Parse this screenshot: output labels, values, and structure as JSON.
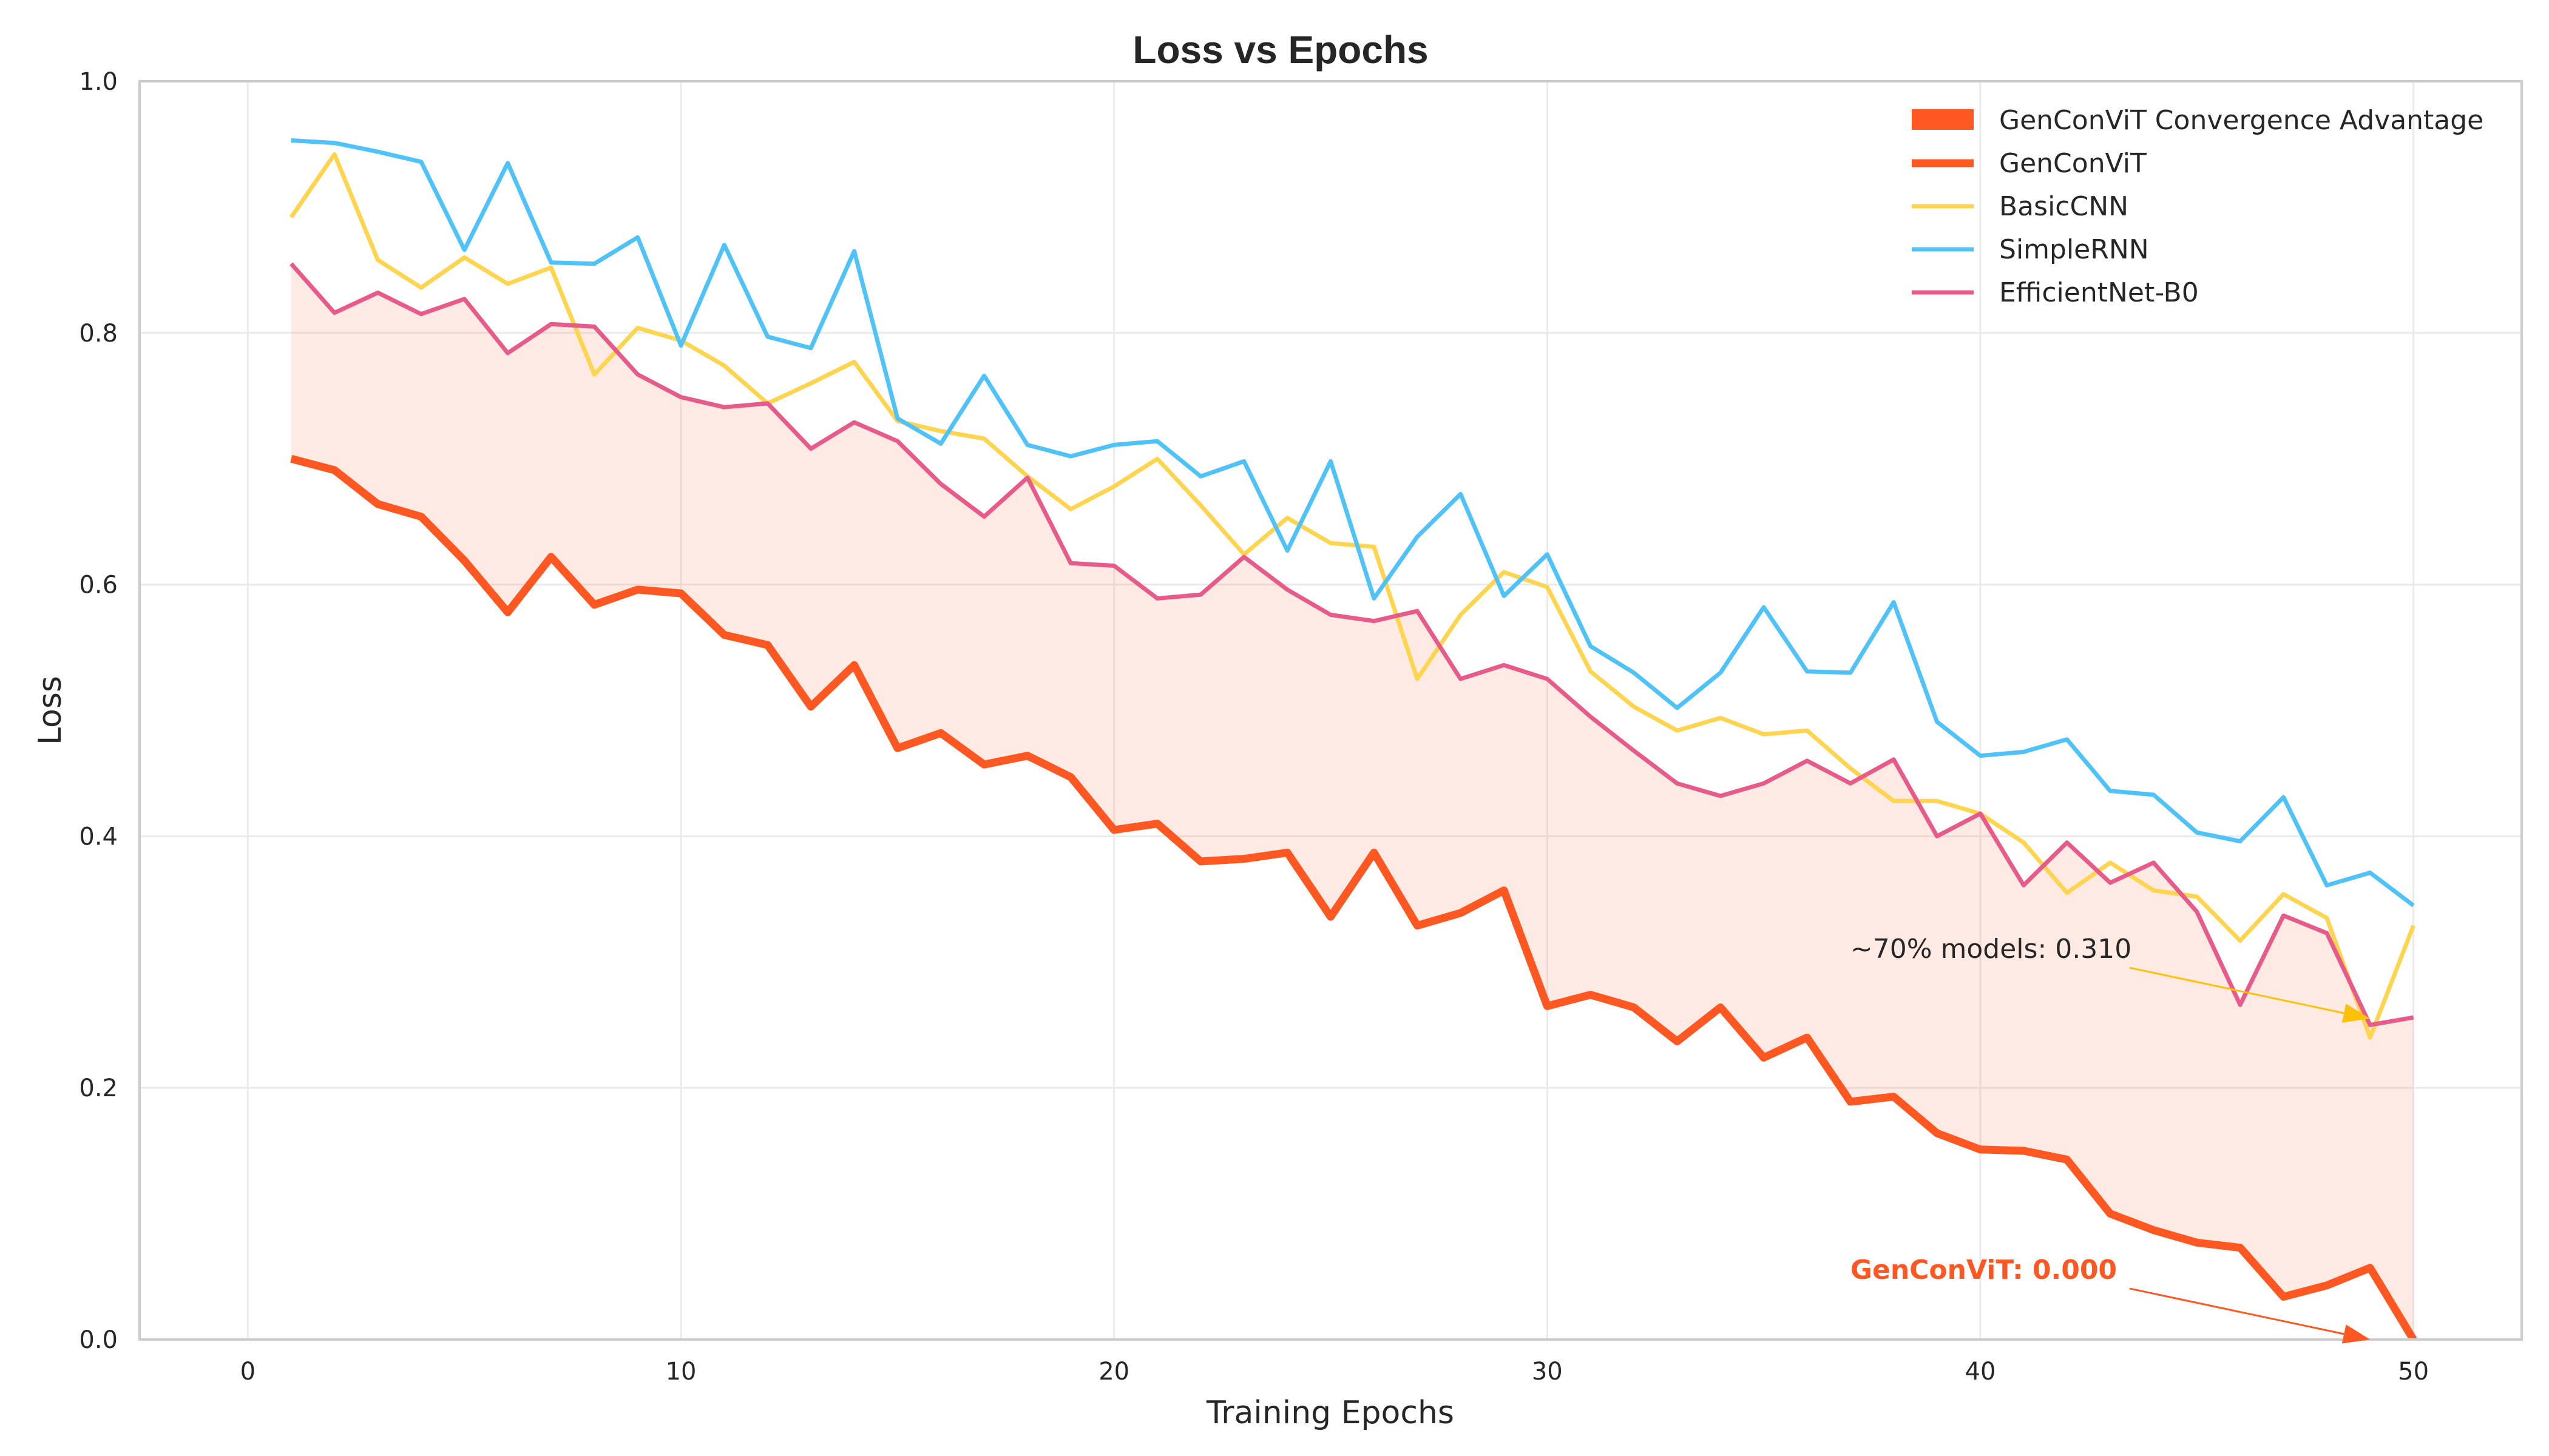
{
  "chart_data": {
    "type": "line",
    "title": "Loss vs Epochs",
    "xlabel": "Training Epochs",
    "ylabel": "Loss",
    "xlim": [
      -2.5,
      52.5
    ],
    "ylim": [
      0.0,
      1.0
    ],
    "xticks": [
      0,
      10,
      20,
      30,
      40,
      50
    ],
    "xtick_labels": [
      "0",
      "10",
      "20",
      "30",
      "40",
      "50"
    ],
    "yticks": [
      0.0,
      0.2,
      0.4,
      0.6,
      0.8,
      1.0
    ],
    "ytick_labels": [
      "0.0",
      "0.2",
      "0.4",
      "0.6",
      "0.8",
      "1.0"
    ],
    "grid": true,
    "legend_position": "top-right",
    "x": [
      1,
      2,
      3,
      4,
      5,
      6,
      7,
      8,
      9,
      10,
      11,
      12,
      13,
      14,
      15,
      16,
      17,
      18,
      19,
      20,
      21,
      22,
      23,
      24,
      25,
      26,
      27,
      28,
      29,
      30,
      31,
      32,
      33,
      34,
      35,
      36,
      37,
      38,
      39,
      40,
      41,
      42,
      43,
      44,
      45,
      46,
      47,
      48,
      49,
      50
    ],
    "fill": {
      "name": "GenConViT Convergence Advantage",
      "color": "#FF5722",
      "opacity": 0.12,
      "lower_series": "GenConViT",
      "upper_series": "EfficientNet-B0"
    },
    "series": [
      {
        "name": "GenConViT",
        "color": "#FF5722",
        "width": 13,
        "values": [
          0.7,
          0.691,
          0.664,
          0.654,
          0.619,
          0.578,
          0.622,
          0.584,
          0.596,
          0.593,
          0.56,
          0.552,
          0.503,
          0.536,
          0.47,
          0.482,
          0.457,
          0.464,
          0.447,
          0.405,
          0.41,
          0.38,
          0.382,
          0.387,
          0.336,
          0.387,
          0.329,
          0.339,
          0.357,
          0.265,
          0.274,
          0.264,
          0.237,
          0.264,
          0.224,
          0.24,
          0.189,
          0.193,
          0.164,
          0.151,
          0.15,
          0.143,
          0.1,
          0.087,
          0.077,
          0.073,
          0.034,
          0.043,
          0.057,
          0.0
        ]
      },
      {
        "name": "BasicCNN",
        "color": "#FFD54F",
        "width": 7,
        "values": [
          0.892,
          0.942,
          0.858,
          0.836,
          0.86,
          0.839,
          0.852,
          0.767,
          0.804,
          0.794,
          0.774,
          0.744,
          0.76,
          0.777,
          0.73,
          0.722,
          0.716,
          0.686,
          0.66,
          0.678,
          0.7,
          0.663,
          0.624,
          0.653,
          0.633,
          0.63,
          0.525,
          0.576,
          0.61,
          0.598,
          0.531,
          0.503,
          0.484,
          0.494,
          0.481,
          0.484,
          0.454,
          0.428,
          0.428,
          0.418,
          0.395,
          0.355,
          0.379,
          0.357,
          0.352,
          0.317,
          0.354,
          0.335,
          0.24,
          0.329
        ]
      },
      {
        "name": "SimpleRNN",
        "color": "#4FC3F7",
        "width": 7,
        "values": [
          0.953,
          0.951,
          0.944,
          0.936,
          0.866,
          0.935,
          0.856,
          0.855,
          0.876,
          0.79,
          0.87,
          0.797,
          0.788,
          0.865,
          0.732,
          0.712,
          0.766,
          0.711,
          0.702,
          0.711,
          0.714,
          0.686,
          0.698,
          0.627,
          0.698,
          0.589,
          0.638,
          0.672,
          0.591,
          0.624,
          0.551,
          0.53,
          0.502,
          0.53,
          0.582,
          0.531,
          0.53,
          0.586,
          0.491,
          0.464,
          0.467,
          0.477,
          0.436,
          0.433,
          0.403,
          0.396,
          0.431,
          0.361,
          0.371,
          0.345
        ]
      },
      {
        "name": "EfficientNet-B0",
        "color": "#E75A89",
        "width": 7,
        "values": [
          0.855,
          0.816,
          0.832,
          0.815,
          0.827,
          0.784,
          0.807,
          0.805,
          0.767,
          0.749,
          0.741,
          0.744,
          0.708,
          0.729,
          0.714,
          0.68,
          0.654,
          0.685,
          0.617,
          0.615,
          0.589,
          0.592,
          0.622,
          0.596,
          0.576,
          0.571,
          0.579,
          0.525,
          0.536,
          0.525,
          0.495,
          0.468,
          0.442,
          0.432,
          0.442,
          0.46,
          0.442,
          0.461,
          0.4,
          0.418,
          0.361,
          0.395,
          0.363,
          0.379,
          0.34,
          0.266,
          0.337,
          0.323,
          0.25,
          0.256
        ]
      }
    ],
    "legend": [
      {
        "label": "GenConViT Convergence Advantage",
        "kind": "patch",
        "color": "#FF5722"
      },
      {
        "label": "GenConViT",
        "kind": "line",
        "color": "#FF5722"
      },
      {
        "label": "BasicCNN",
        "kind": "line",
        "color": "#FFD54F"
      },
      {
        "label": "SimpleRNN",
        "kind": "line",
        "color": "#4FC3F7"
      },
      {
        "label": "EfficientNet-B0",
        "kind": "line",
        "color": "#E75A89"
      }
    ],
    "annotations": [
      {
        "text": "~70% models: 0.310",
        "color": "#262626",
        "bold": false,
        "text_x": 37,
        "text_y": 0.31,
        "point_x": 49,
        "point_y": 0.255,
        "arrow_color": "#FFC107"
      },
      {
        "text": "GenConViT: 0.000",
        "color": "#FF5722",
        "bold": true,
        "text_x": 37,
        "text_y": 0.055,
        "point_x": 49,
        "point_y": 0.0,
        "arrow_color": "#FF5722"
      }
    ]
  }
}
